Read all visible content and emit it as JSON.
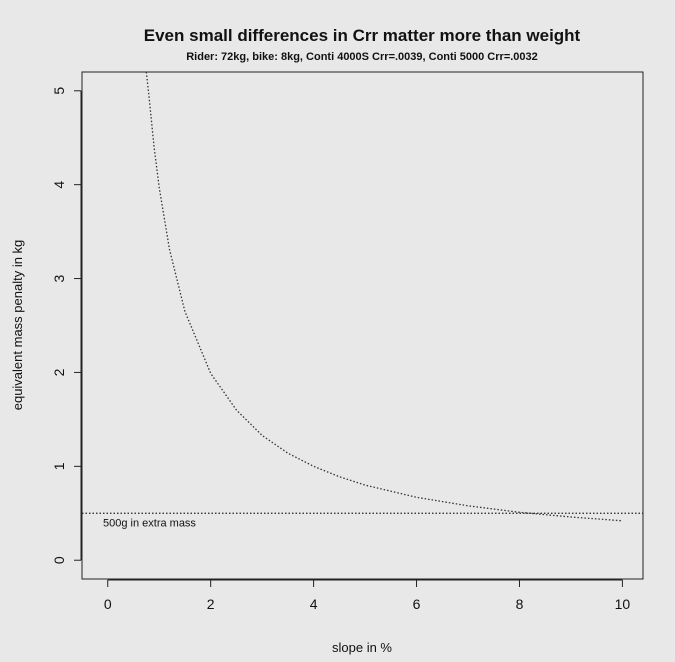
{
  "chart_data": {
    "type": "line",
    "title": "Even small differences in Crr matter more than weight",
    "subtitle": "Rider: 72kg, bike: 8kg, Conti 4000S Crr=.0039, Conti 5000 Crr=.0032",
    "xlabel": "slope in %",
    "ylabel": "equivalent mass penalty in kg",
    "xlim": [
      -0.5,
      10.4
    ],
    "ylim": [
      -0.2,
      5.2
    ],
    "xticks": [
      0,
      2,
      4,
      6,
      8,
      10
    ],
    "yticks": [
      0,
      1,
      2,
      3,
      4,
      5
    ],
    "grid": false,
    "series": [
      {
        "style": "dotted",
        "x": [
          0.75,
          0.8,
          0.9,
          1.0,
          1.2,
          1.5,
          2.0,
          2.5,
          3.0,
          3.5,
          4.0,
          4.5,
          5.0,
          6.0,
          7.0,
          8.0,
          9.0,
          10.0
        ],
        "y": [
          5.2,
          4.95,
          4.4,
          3.97,
          3.31,
          2.65,
          1.99,
          1.6,
          1.33,
          1.14,
          1.0,
          0.89,
          0.8,
          0.67,
          0.58,
          0.51,
          0.46,
          0.42
        ]
      }
    ],
    "reference_lines": [
      {
        "orientation": "horizontal",
        "y": 0.5,
        "style": "dotted",
        "label": "500g in extra mass"
      }
    ]
  }
}
